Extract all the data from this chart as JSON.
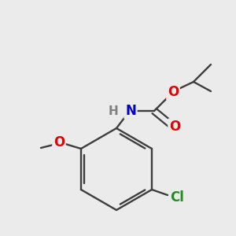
{
  "background_color": "#ebebeb",
  "bond_color": "#3d3d3d",
  "atom_colors": {
    "O": "#e60000",
    "N": "#0000cc",
    "Cl": "#228B22",
    "H": "#808080",
    "C": "#3d3d3d"
  },
  "figsize": [
    3.0,
    3.0
  ],
  "dpi": 100
}
